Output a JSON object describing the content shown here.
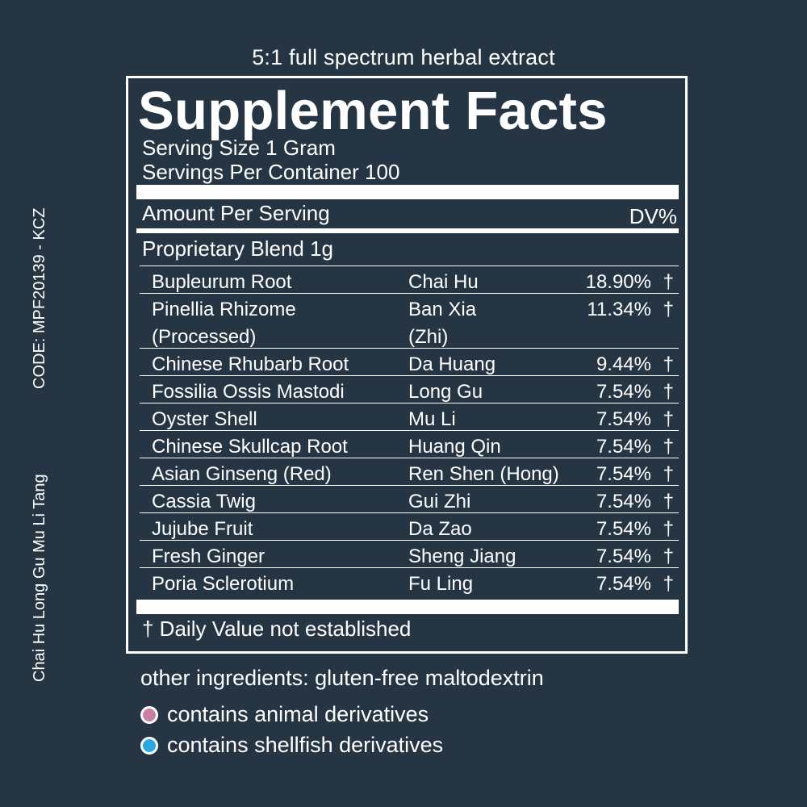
{
  "subtitle": "5:1 full spectrum herbal extract",
  "side": {
    "code": "CODE: MPF20139 - KCZ",
    "formula_name": "Chai Hu Long Gu Mu Li Tang"
  },
  "facts": {
    "title": "Supplement Facts",
    "serving_size": "Serving Size 1 Gram",
    "servings_per_container": "Servings Per Container 100",
    "amount_per_serving": "Amount Per Serving",
    "dv_header": "DV%",
    "blend": "Proprietary Blend 1g",
    "ingredients": [
      {
        "english": "Bupleurum Root",
        "pinyin": "Chai Hu",
        "percent": "18.90%",
        "mark": "†"
      },
      {
        "english": "Pinellia Rhizome",
        "english_2": "(Processed)",
        "pinyin": "Ban Xia",
        "pinyin_2": "(Zhi)",
        "percent": "11.34%",
        "mark": "†"
      },
      {
        "english": "Chinese Rhubarb Root",
        "pinyin": "Da Huang",
        "percent": "9.44%",
        "mark": "†"
      },
      {
        "english": "Fossilia Ossis Mastodi",
        "pinyin": "Long Gu",
        "percent": "7.54%",
        "mark": "†"
      },
      {
        "english": "Oyster Shell",
        "pinyin": "Mu Li",
        "percent": "7.54%",
        "mark": "†"
      },
      {
        "english": "Chinese Skullcap Root",
        "pinyin": "Huang Qin",
        "percent": "7.54%",
        "mark": "†"
      },
      {
        "english": "Asian Ginseng (Red)",
        "pinyin": "Ren Shen (Hong)",
        "percent": "7.54%",
        "mark": "†"
      },
      {
        "english": "Cassia Twig",
        "pinyin": "Gui Zhi",
        "percent": "7.54%",
        "mark": "†"
      },
      {
        "english": "Jujube Fruit",
        "pinyin": "Da Zao",
        "percent": "7.54%",
        "mark": "†"
      },
      {
        "english": "Fresh Ginger",
        "pinyin": "Sheng Jiang",
        "percent": "7.54%",
        "mark": "†"
      },
      {
        "english": "Poria Sclerotium",
        "pinyin": "Fu Ling",
        "percent": "7.54%",
        "mark": "†"
      }
    ],
    "footnote": "† Daily Value not established"
  },
  "other_ingredients": "other ingredients: gluten-free maltodextrin",
  "legend": [
    {
      "label": "contains animal derivatives",
      "color": "#c97fa3"
    },
    {
      "label": "contains shellfish derivatives",
      "color": "#2aa9e0"
    }
  ],
  "colors": {
    "background": "#263543",
    "foreground": "#ffffff"
  }
}
